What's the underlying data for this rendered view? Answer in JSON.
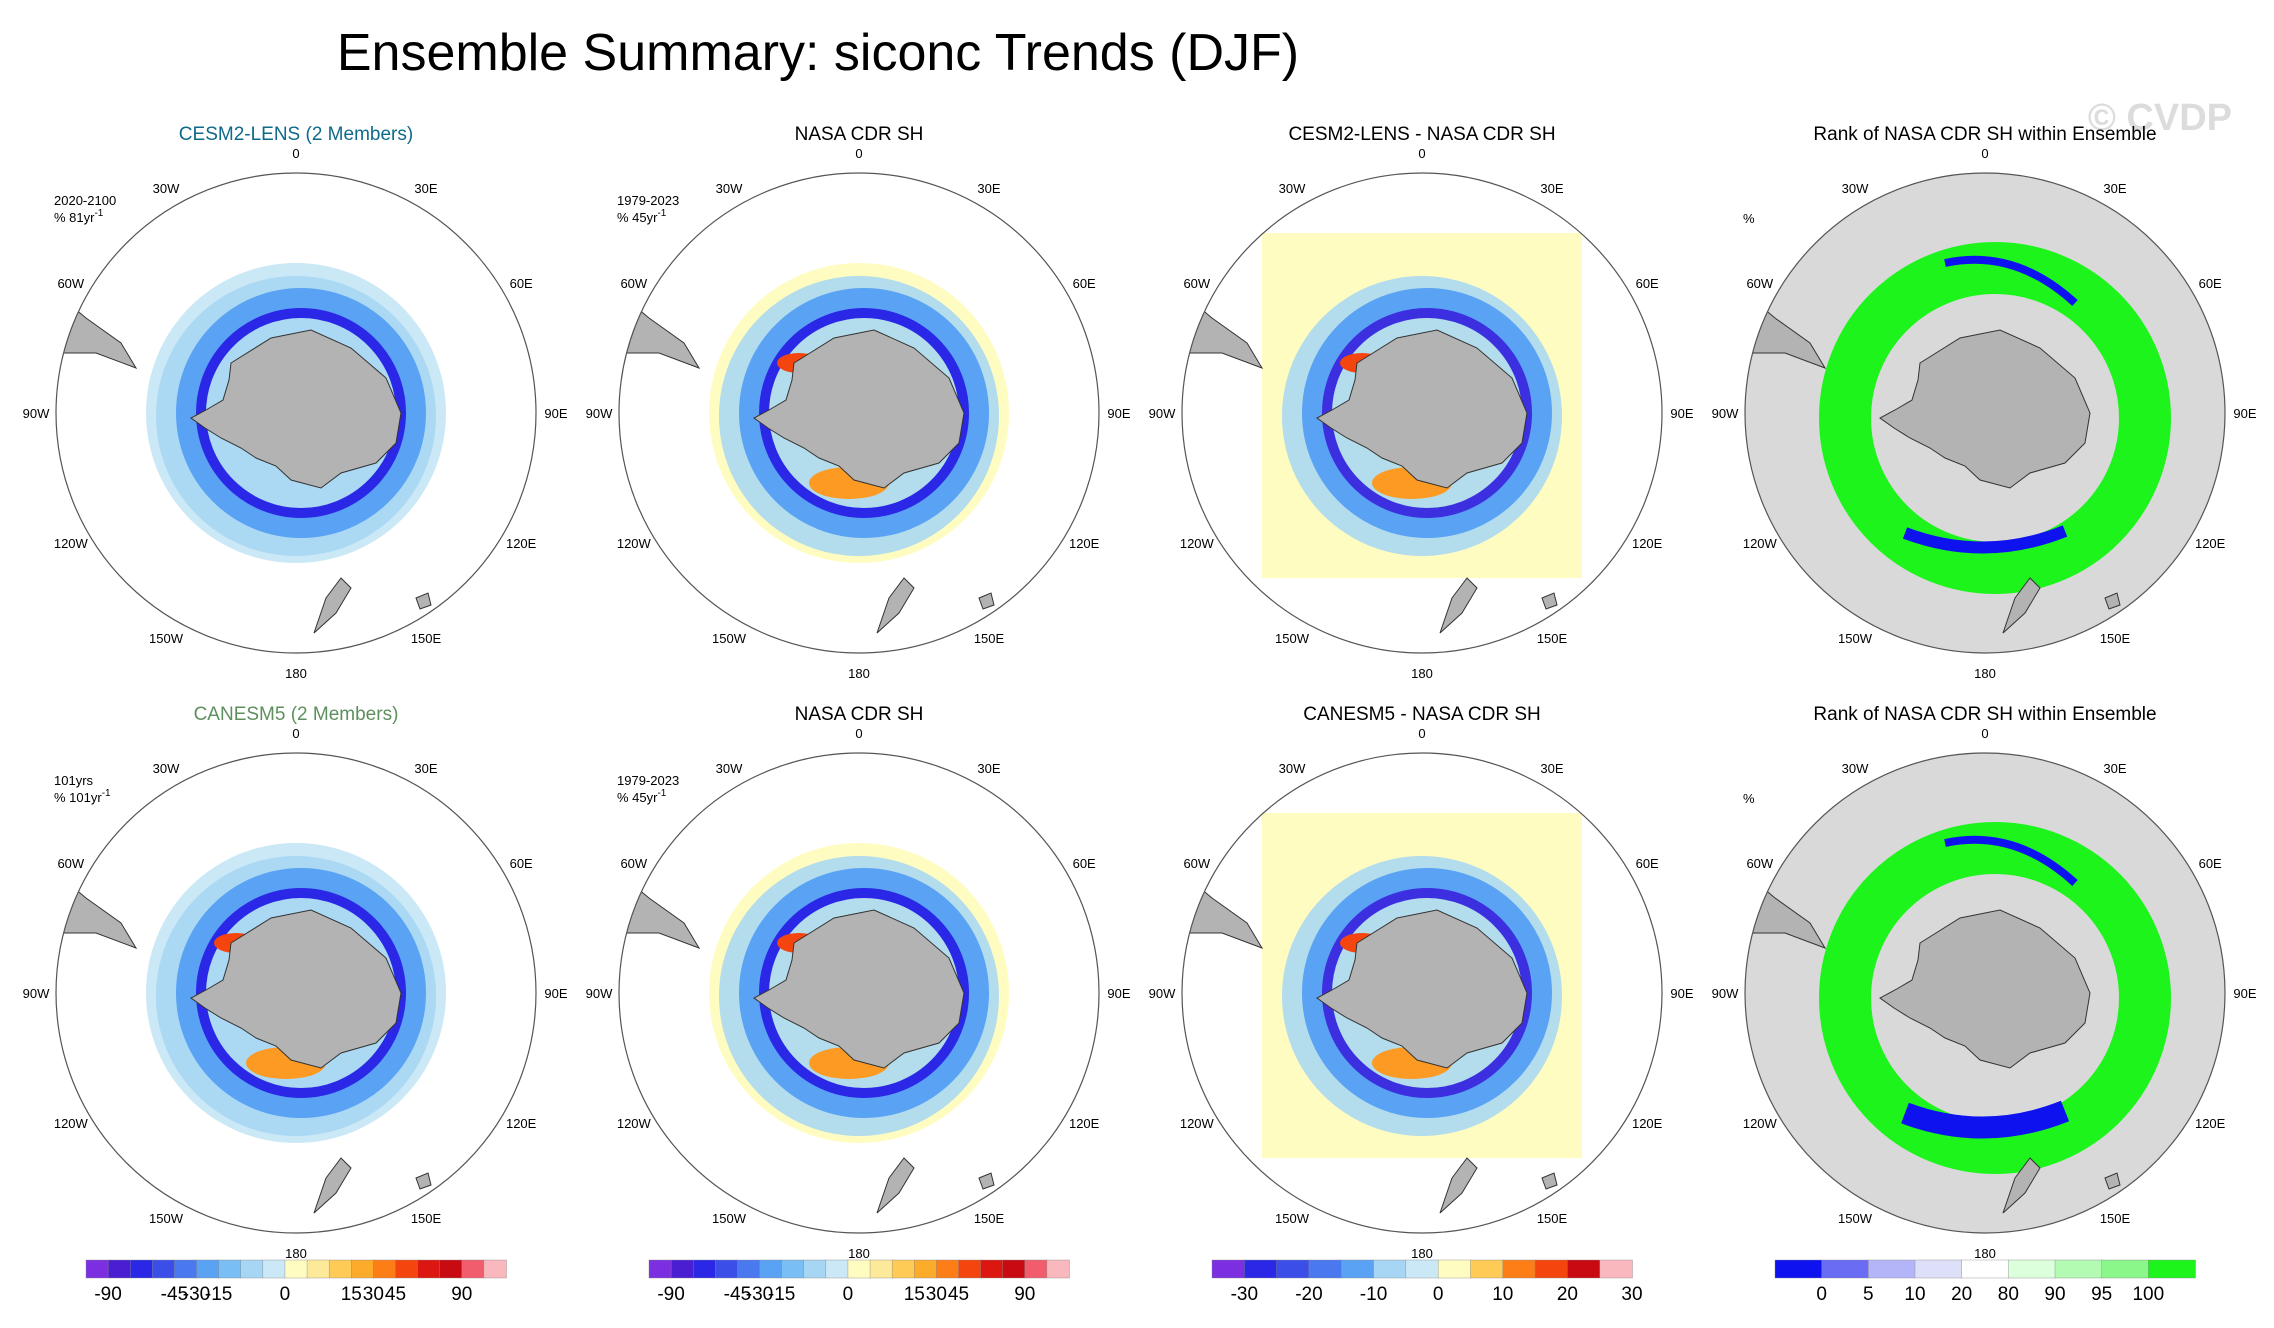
{
  "title": "Ensemble Summary: siconc Trends (DJF)",
  "watermark": "© CVDP",
  "longitude_labels": [
    "0",
    "30E",
    "60E",
    "90E",
    "120E",
    "150E",
    "180",
    "150W",
    "120W",
    "90W",
    "60W",
    "30W"
  ],
  "rows": [
    {
      "model": "CESM2-LENS (2 Members)",
      "model_color": "#0f6a8a",
      "panels": [
        {
          "title": "CESM2-LENS (2 Members)",
          "type": "model",
          "period": "2020-2100",
          "units": "% 81yr",
          "units_sup": "-1"
        },
        {
          "title": "NASA CDR SH",
          "type": "obs",
          "period": "1979-2023",
          "units": "% 45yr",
          "units_sup": "-1"
        },
        {
          "title": "CESM2-LENS - NASA CDR SH",
          "type": "diff",
          "period": "",
          "units": "",
          "units_sup": ""
        },
        {
          "title": "Rank of NASA CDR SH within Ensemble",
          "type": "rank",
          "period": "",
          "units": "%",
          "units_sup": ""
        }
      ]
    },
    {
      "model": "CANESM5 (2 Members)",
      "model_color": "#5e8f5e",
      "panels": [
        {
          "title": "CANESM5 (2 Members)",
          "type": "model",
          "period": "101yrs",
          "units": "% 101yr",
          "units_sup": "-1"
        },
        {
          "title": "NASA CDR SH",
          "type": "obs",
          "period": "1979-2023",
          "units": "% 45yr",
          "units_sup": "-1"
        },
        {
          "title": "CANESM5 - NASA CDR SH",
          "type": "diff",
          "period": "",
          "units": "",
          "units_sup": ""
        },
        {
          "title": "Rank of NASA CDR SH within Ensemble",
          "type": "rank",
          "period": "",
          "units": "%",
          "units_sup": ""
        }
      ]
    }
  ],
  "chart_data": [
    {
      "type": "heatmap",
      "name": "trend colorbar (model / obs panels)",
      "levels": [
        -90,
        -75,
        -60,
        -45,
        -30,
        -15,
        -10,
        -5,
        0,
        5,
        10,
        15,
        30,
        45,
        60,
        75,
        90
      ],
      "tick_labels": [
        "-90",
        "-45",
        "-30",
        "-15",
        "0",
        "15",
        "30",
        "45",
        "90"
      ],
      "colors": [
        "#7b2fe0",
        "#4b1ed2",
        "#2a28e6",
        "#3b4fe8",
        "#4a78ef",
        "#5aa2f4",
        "#79bff5",
        "#a6d6f3",
        "#cbe8f6",
        "#fffcc2",
        "#fde99a",
        "#fecb57",
        "#fdab2a",
        "#fd7d17",
        "#f5450f",
        "#dc1712",
        "#c80a13",
        "#f25d6e",
        "#f9b8bd"
      ]
    },
    {
      "type": "heatmap",
      "name": "difference colorbar",
      "levels": [
        -30,
        -25,
        -20,
        -15,
        -10,
        -5,
        0,
        5,
        10,
        15,
        20,
        25,
        30
      ],
      "tick_labels": [
        "-30",
        "-20",
        "-10",
        "0",
        "10",
        "20",
        "30"
      ],
      "colors": [
        "#7b2fe0",
        "#2a28e6",
        "#3b4fe8",
        "#4a78ef",
        "#5aa2f4",
        "#a6d6f3",
        "#cbe8f6",
        "#fffcc2",
        "#fecb57",
        "#fd7d17",
        "#f5450f",
        "#c80a13",
        "#f9b8bd"
      ]
    },
    {
      "type": "heatmap",
      "name": "rank colorbar",
      "levels": [
        0,
        5,
        10,
        20,
        80,
        90,
        95,
        100
      ],
      "tick_labels": [
        "0",
        "5",
        "10",
        "20",
        "80",
        "90",
        "95",
        "100"
      ],
      "colors": [
        "#0d12ef",
        "#6a6cf3",
        "#b4b5f8",
        "#dedff8",
        "#ffffff",
        "#dcffdc",
        "#b3fbb3",
        "#8bf78b",
        "#1cf41c"
      ]
    }
  ]
}
